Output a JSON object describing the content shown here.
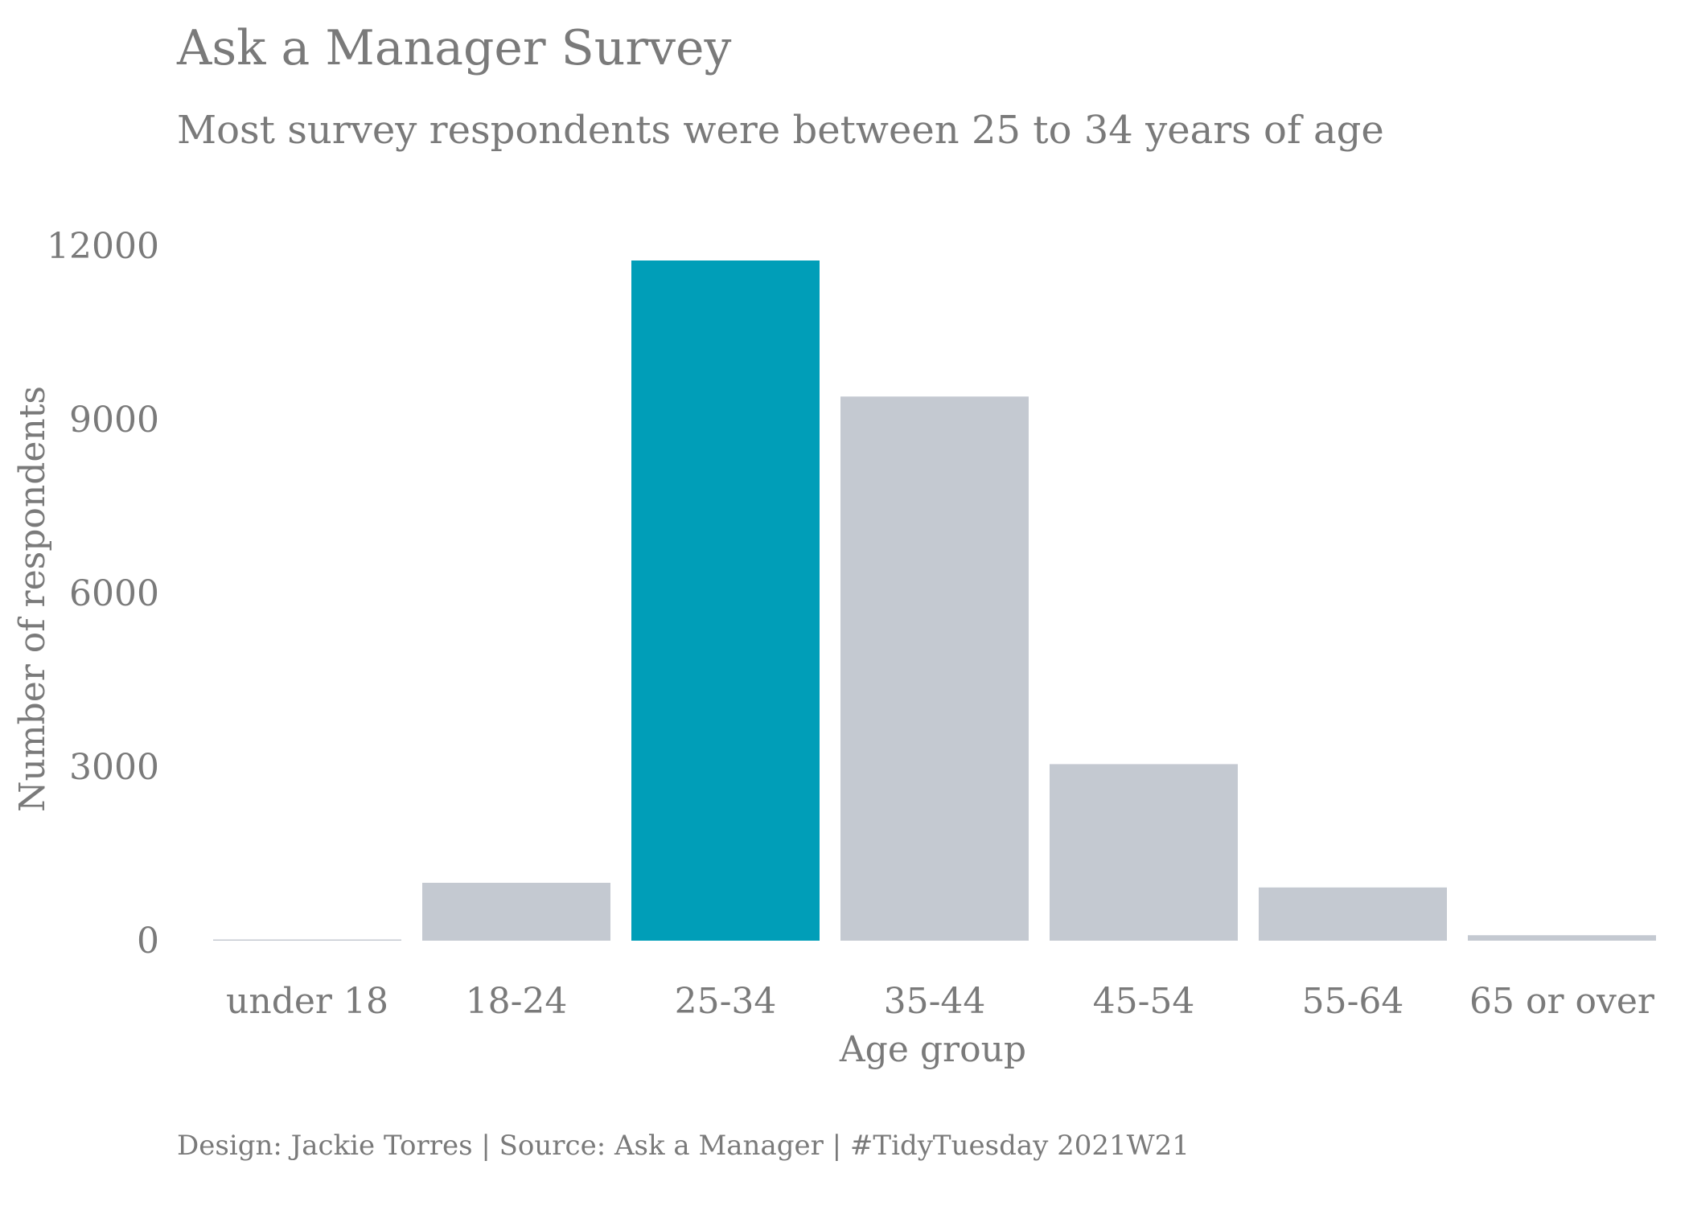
{
  "title": "Ask a Manager Survey",
  "subtitle": "Most survey respondents were between 25 to 34 years of age",
  "caption": "Design: Jackie Torres | Source: Ask a Manager | #TidyTuesday 2021W21",
  "colors": {
    "highlight": "#009eb8",
    "bar": "#c4c9d1",
    "text": "#7a7a7a"
  },
  "chart_data": {
    "type": "bar",
    "title": "Ask a Manager Survey",
    "subtitle": "Most survey respondents were between 25 to 34 years of age",
    "xlabel": "Age group",
    "ylabel": "Number of respondents",
    "categories": [
      "under 18",
      "18-24",
      "25-34",
      "35-44",
      "45-54",
      "55-64",
      "65 or over"
    ],
    "values": [
      15,
      1000,
      11750,
      9400,
      3050,
      920,
      95
    ],
    "highlight_category": "25-34",
    "yticks": [
      0,
      3000,
      6000,
      9000,
      12000
    ],
    "ylim": [
      0,
      12000
    ],
    "grid": false,
    "legend": "none"
  }
}
